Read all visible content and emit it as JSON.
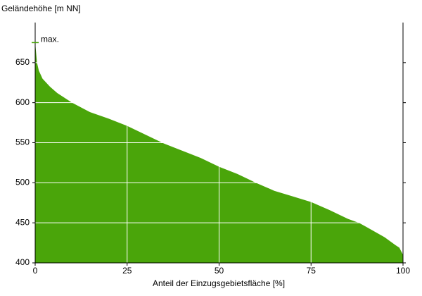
{
  "chart_data": {
    "type": "area",
    "y_label": "Geländehöhe [m NN]",
    "x_label": "Anteil der Einzugsgebietsfläche [%]",
    "x": [
      0,
      0.5,
      1,
      2,
      4,
      6,
      10,
      15,
      20,
      25,
      30,
      35,
      40,
      45,
      50,
      55,
      60,
      65,
      70,
      75,
      80,
      85,
      88,
      90,
      95,
      98,
      99,
      100
    ],
    "values": [
      675,
      650,
      640,
      630,
      620,
      612,
      600,
      588,
      580,
      571,
      560,
      549,
      540,
      531,
      520,
      511,
      500,
      490,
      483,
      476,
      466,
      455,
      450,
      445,
      432,
      422,
      419,
      410
    ],
    "color": "#4aa50a",
    "xlim": [
      0,
      100
    ],
    "xticks": [
      0,
      25,
      50,
      75,
      100
    ],
    "ylim": [
      400,
      700
    ],
    "yticks": [
      400,
      450,
      500,
      550,
      600,
      650
    ],
    "grid": true,
    "annotation": {
      "text": "max.",
      "value": 675
    }
  }
}
